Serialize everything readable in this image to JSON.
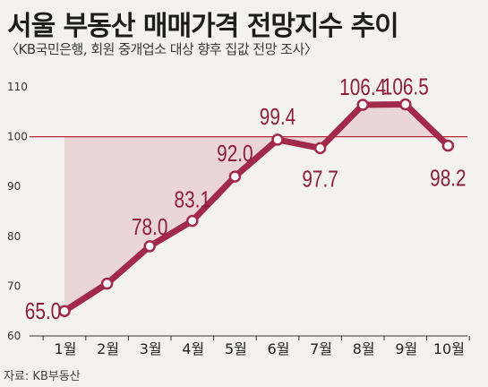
{
  "header": {
    "title": "서울 부동산 매매가격 전망지수 추이",
    "subtitle": "〈KB국민은행, 회원 중개업소 대상 향후 집값 전망 조사〉"
  },
  "footer": {
    "source": "자료: KB부동산"
  },
  "colors": {
    "line": "#a1294a",
    "reference_line": "#b8243a",
    "area_fill": "#ead6d4",
    "background": "#f3f2ee"
  },
  "chart_data": {
    "type": "line",
    "title": "서울 부동산 매매가격 전망지수 추이",
    "categories": [
      "1월",
      "2월",
      "3월",
      "4월",
      "5월",
      "6월",
      "7월",
      "8월",
      "9월",
      "10월"
    ],
    "values": [
      65.0,
      70.5,
      78.0,
      83.1,
      92.0,
      99.4,
      97.7,
      106.4,
      106.5,
      98.2
    ],
    "data_labels": [
      "65.0",
      "",
      "78.0",
      "83.1",
      "92.0",
      "99.4",
      "97.7",
      "106.4",
      "106.5",
      "98.2"
    ],
    "ylim": [
      60,
      110
    ],
    "yticks": [
      60,
      70,
      80,
      90,
      100,
      110
    ],
    "reference_line": 100,
    "grid": false,
    "shaded_deviation_from": 100
  }
}
